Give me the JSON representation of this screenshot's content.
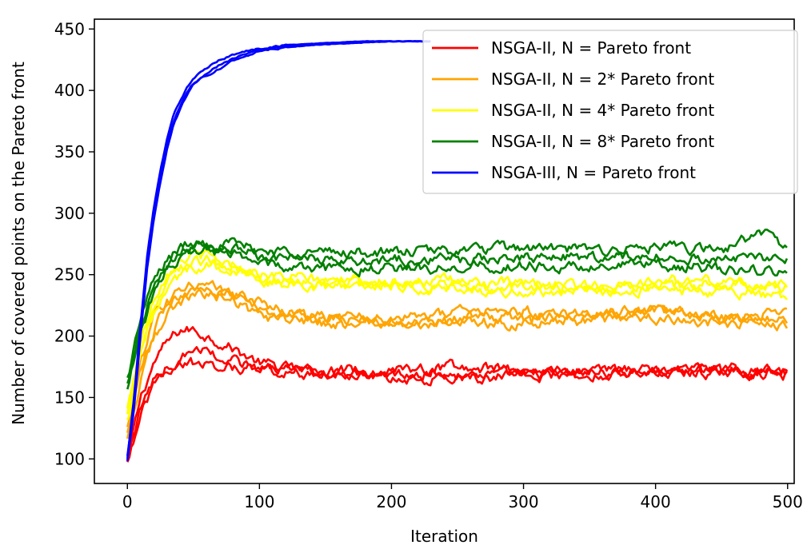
{
  "chart_data": {
    "type": "line",
    "title": "",
    "xlabel": "Iteration",
    "ylabel": "Number of covered points on the Pareto front",
    "xlim": [
      -25,
      505
    ],
    "ylim": [
      80,
      458
    ],
    "xticks": [
      0,
      100,
      200,
      300,
      400,
      500
    ],
    "yticks": [
      100,
      150,
      200,
      250,
      300,
      350,
      400,
      450
    ],
    "grid": false,
    "legend_position": "top-right",
    "runs_per_series": 3,
    "series": [
      {
        "name": "NSGA-II, N = Pareto front",
        "color": "#ff0000",
        "runs": [
          {
            "x": [
              0,
              10,
              20,
              30,
              40,
              50,
              60,
              70,
              80,
              100,
              130,
              160,
              200,
              250,
              300,
              350,
              400,
              450,
              500
            ],
            "y": [
              98,
              150,
              178,
              195,
              205,
              205,
              200,
              195,
              190,
              178,
              172,
              170,
              170,
              168,
              168,
              170,
              170,
              170,
              170
            ]
          },
          {
            "x": [
              0,
              10,
              20,
              30,
              40,
              50,
              60,
              80,
              100,
              150,
              200,
              250,
              300,
              350,
              400,
              450,
              500
            ],
            "y": [
              102,
              140,
              165,
              175,
              178,
              178,
              177,
              175,
              173,
              172,
              172,
              175,
              172,
              172,
              173,
              172,
              172
            ]
          },
          {
            "x": [
              0,
              10,
              20,
              30,
              40,
              50,
              60,
              80,
              100,
              150,
              200,
              250,
              300,
              350,
              400,
              450,
              500
            ],
            "y": [
              96,
              135,
              158,
              172,
              182,
              190,
              188,
              180,
              172,
              168,
              166,
              165,
              168,
              168,
              172,
              175,
              168
            ]
          }
        ]
      },
      {
        "name": "NSGA-II, N = 2* Pareto front",
        "color": "#ffa500",
        "runs": [
          {
            "x": [
              0,
              10,
              20,
              30,
              40,
              50,
              60,
              80,
              100,
              120,
              150,
              200,
              250,
              300,
              350,
              400,
              450,
              500
            ],
            "y": [
              125,
              180,
              215,
              230,
              240,
              242,
              240,
              235,
              228,
              220,
              215,
              210,
              215,
              215,
              220,
              220,
              215,
              213
            ]
          },
          {
            "x": [
              0,
              10,
              20,
              30,
              40,
              50,
              60,
              80,
              100,
              150,
              200,
              250,
              300,
              350,
              400,
              450,
              500
            ],
            "y": [
              120,
              172,
              205,
              225,
              235,
              240,
              238,
              232,
              222,
              215,
              215,
              220,
              220,
              218,
              222,
              215,
              220
            ]
          },
          {
            "x": [
              0,
              10,
              20,
              30,
              40,
              50,
              60,
              80,
              100,
              150,
              200,
              250,
              300,
              350,
              400,
              450,
              500
            ],
            "y": [
              115,
              165,
              198,
              218,
              228,
              232,
              234,
              230,
              215,
              210,
              208,
              212,
              210,
              212,
              215,
              210,
              210
            ]
          }
        ]
      },
      {
        "name": "NSGA-II, N = 4* Pareto front",
        "color": "#ffff00",
        "runs": [
          {
            "x": [
              0,
              10,
              20,
              30,
              40,
              50,
              60,
              80,
              100,
              150,
              200,
              250,
              300,
              350,
              400,
              450,
              500
            ],
            "y": [
              140,
              195,
              232,
              252,
              262,
              266,
              265,
              258,
              250,
              245,
              245,
              245,
              242,
              240,
              245,
              245,
              240
            ]
          },
          {
            "x": [
              0,
              10,
              20,
              30,
              40,
              50,
              60,
              80,
              100,
              150,
              200,
              250,
              300,
              350,
              400,
              450,
              500
            ],
            "y": [
              135,
              190,
              225,
              245,
              255,
              260,
              262,
              256,
              248,
              244,
              242,
              240,
              240,
              240,
              240,
              242,
              238
            ]
          },
          {
            "x": [
              0,
              10,
              20,
              30,
              40,
              50,
              60,
              80,
              100,
              150,
              200,
              250,
              300,
              350,
              400,
              450,
              500
            ],
            "y": [
              130,
              185,
              220,
              240,
              250,
              256,
              258,
              252,
              245,
              240,
              240,
              238,
              236,
              237,
              237,
              236,
              232
            ]
          }
        ]
      },
      {
        "name": "NSGA-II, N = 8* Pareto front",
        "color": "#008000",
        "runs": [
          {
            "x": [
              0,
              10,
              20,
              30,
              40,
              50,
              60,
              80,
              100,
              150,
              200,
              250,
              300,
              350,
              400,
              450,
              480,
              500
            ],
            "y": [
              165,
              215,
              245,
              262,
              272,
              276,
              277,
              275,
              270,
              268,
              268,
              270,
              272,
              270,
              272,
              270,
              285,
              272
            ]
          },
          {
            "x": [
              0,
              10,
              20,
              30,
              40,
              50,
              60,
              80,
              100,
              150,
              200,
              250,
              300,
              350,
              400,
              450,
              500
            ],
            "y": [
              160,
              210,
              240,
              258,
              268,
              272,
              274,
              272,
              265,
              262,
              262,
              262,
              265,
              264,
              265,
              262,
              262
            ]
          },
          {
            "x": [
              0,
              10,
              20,
              30,
              40,
              50,
              60,
              80,
              100,
              150,
              200,
              250,
              300,
              350,
              400,
              450,
              500
            ],
            "y": [
              155,
              205,
              235,
              252,
              262,
              268,
              270,
              268,
              258,
              255,
              255,
              256,
              258,
              256,
              258,
              255,
              252
            ]
          }
        ]
      },
      {
        "name": "NSGA-III, N = Pareto front",
        "color": "#0000ff",
        "runs": [
          {
            "x": [
              0,
              5,
              10,
              15,
              20,
              25,
              30,
              35,
              40,
              45,
              50,
              60,
              70,
              80,
              90,
              100,
              120,
              140,
              160,
              180,
              200,
              230
            ],
            "y": [
              100,
              150,
              210,
              265,
              305,
              335,
              360,
              380,
              392,
              402,
              410,
              418,
              425,
              429,
              432,
              434,
              437,
              438,
              439,
              440,
              440,
              440
            ]
          },
          {
            "x": [
              0,
              5,
              10,
              15,
              20,
              25,
              30,
              35,
              40,
              45,
              50,
              60,
              70,
              80,
              90,
              100,
              120,
              140,
              160,
              180,
              200,
              230
            ],
            "y": [
              98,
              140,
              200,
              255,
              295,
              325,
              352,
              372,
              385,
              396,
              405,
              414,
              421,
              426,
              430,
              433,
              436,
              438,
              439,
              440,
              440,
              440
            ]
          },
          {
            "x": [
              0,
              5,
              10,
              15,
              20,
              25,
              30,
              35,
              40,
              45,
              50,
              60,
              70,
              80,
              90,
              100,
              120,
              140,
              160,
              180,
              200,
              230
            ],
            "y": [
              102,
              145,
              205,
              260,
              300,
              330,
              356,
              375,
              388,
              398,
              406,
              412,
              418,
              424,
              428,
              432,
              435,
              437,
              438,
              439,
              440,
              440
            ]
          }
        ]
      }
    ]
  }
}
